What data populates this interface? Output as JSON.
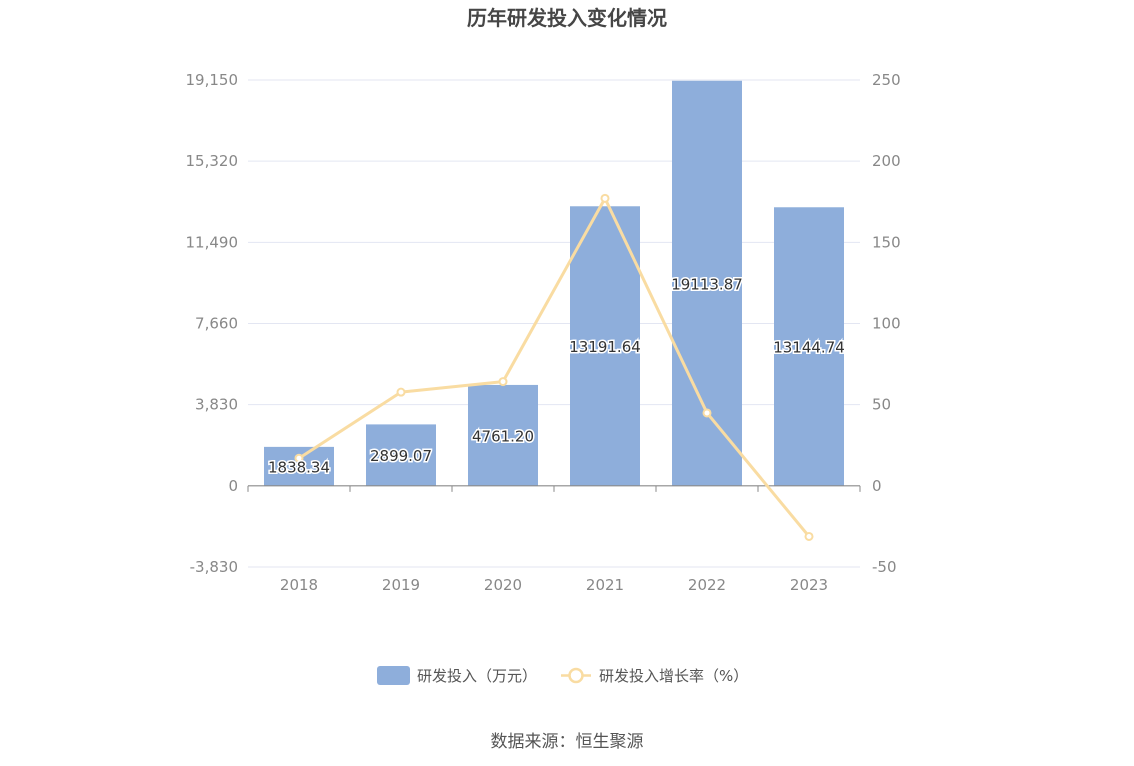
{
  "chart_data": {
    "type": "bar",
    "title": "历年研发投入变化情况",
    "categories": [
      "2018",
      "2019",
      "2020",
      "2021",
      "2022",
      "2023"
    ],
    "series": [
      {
        "name": "研发投入（万元）",
        "type": "bar",
        "axis": "left",
        "color": "#8eaedb",
        "values": [
          1838.34,
          2899.07,
          4761.2,
          13191.64,
          19113.87,
          13144.74
        ],
        "labels": [
          "1838.34",
          "2899.07",
          "4761.20",
          "13191.64",
          "19113.87",
          "13144.74"
        ]
      },
      {
        "name": "研发投入增长率（%）",
        "type": "line",
        "axis": "right",
        "color": "#f9dca2",
        "values": [
          17,
          57.7,
          64.2,
          177.1,
          44.9,
          -31.2
        ]
      }
    ],
    "left_axis": {
      "ticks": [
        -3830,
        0,
        3830,
        7660,
        11490,
        15320,
        19150
      ],
      "tick_labels": [
        "-3,830",
        "0",
        "3,830",
        "7,660",
        "11,490",
        "15,320",
        "19,150"
      ],
      "range": [
        -3830,
        19150
      ]
    },
    "right_axis": {
      "ticks": [
        -50,
        0,
        50,
        100,
        150,
        200,
        250
      ],
      "tick_labels": [
        "-50",
        "0",
        "50",
        "100",
        "150",
        "200",
        "250"
      ],
      "range": [
        -50,
        250
      ]
    },
    "grid": true,
    "legend_position": "bottom",
    "source": "数据来源：恒生聚源"
  }
}
